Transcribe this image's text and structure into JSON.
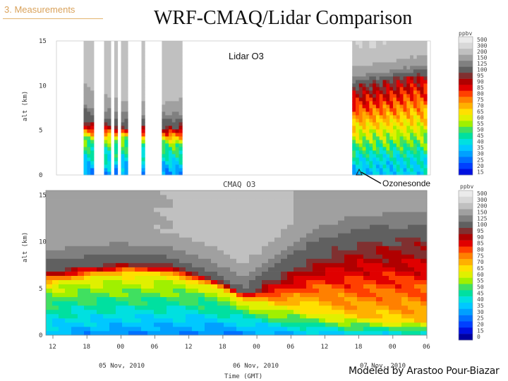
{
  "slide": {
    "section": "3. Measurements",
    "title": "WRF-CMAQ/Lidar Comparison",
    "credit": "Modeled by Arastoo Pour-Biazar",
    "ozonesonde_label": "Ozonesonde"
  },
  "colors": {
    "scale": [
      "#0000a0",
      "#0010e0",
      "#0040ff",
      "#0070ff",
      "#00a0ff",
      "#00c8ff",
      "#00e0e0",
      "#00e0a0",
      "#40e060",
      "#a0f000",
      "#e0f000",
      "#ffe000",
      "#ffb000",
      "#ff8000",
      "#ff4000",
      "#e00000",
      "#b00000",
      "#803030",
      "#606060",
      "#808080",
      "#a0a0a0",
      "#c0c0c0",
      "#d8d8d8",
      "#ebebeb"
    ],
    "accent": "#d9a25b"
  },
  "chart_data": [
    {
      "type": "heatmap",
      "title": "Lidar O3",
      "ylabel": "alt (km)",
      "ylim": [
        0,
        15
      ],
      "yticks": [
        "0",
        "5",
        "10",
        "15"
      ],
      "colorbar_unit": "ppbv",
      "colorbar_ticks": [
        "500",
        "300",
        "200",
        "150",
        "125",
        "100",
        "95",
        "90",
        "85",
        "80",
        "75",
        "70",
        "65",
        "60",
        "55",
        "50",
        "45",
        "40",
        "35",
        "30",
        "25",
        "20",
        "15"
      ],
      "profile_columns": [
        {
          "t": 0.0,
          "sfc": 35,
          "bl_top": 4.5,
          "pl": 55,
          "peak_alt": 8.0,
          "peak": 115,
          "upper": 220,
          "gap": false
        },
        {
          "t": 0.07,
          "sfc": 30,
          "bl_top": 4.0,
          "pl": 55,
          "peak_alt": 7.0,
          "peak": 120,
          "upper": 230,
          "gap": false
        },
        {
          "t": 0.11,
          "sfc": 32,
          "bl_top": 4.0,
          "pl": 58,
          "peak_alt": 6.5,
          "peak": 125,
          "upper": 240,
          "gap": false
        },
        {
          "t": 0.14,
          "sfc": 0,
          "bl_top": 0,
          "pl": 0,
          "peak_alt": 0,
          "peak": 0,
          "upper": 0,
          "gap": true
        },
        {
          "t": 0.19,
          "sfc": 30,
          "bl_top": 4.0,
          "pl": 55,
          "peak_alt": 6.0,
          "peak": 120,
          "upper": 260,
          "gap": false
        },
        {
          "t": 0.31,
          "sfc": 30,
          "bl_top": 3.5,
          "pl": 55,
          "peak_alt": 5.8,
          "peak": 110,
          "upper": 260,
          "gap": false
        },
        {
          "t": 0.47,
          "sfc": 0,
          "bl_top": 0,
          "pl": 0,
          "peak_alt": 0,
          "peak": 0,
          "upper": 0,
          "gap": true
        },
        {
          "t": 0.78,
          "sfc": 35,
          "bl_top": 2.0,
          "pl": 45,
          "peak_alt": 10.0,
          "peak": 100,
          "upper": 300,
          "gap": false
        },
        {
          "t": 0.86,
          "sfc": 38,
          "bl_top": 1.5,
          "pl": 40,
          "peak_alt": 10.5,
          "peak": 100,
          "upper": 300,
          "gap": false
        },
        {
          "t": 0.95,
          "sfc": 40,
          "bl_top": 1.5,
          "pl": 42,
          "peak_alt": 11.0,
          "peak": 95,
          "upper": 280,
          "gap": false
        }
      ]
    },
    {
      "type": "heatmap",
      "title": "CMAQ O3",
      "xlabel": "Time (GMT)",
      "ylabel": "alt (km)",
      "ylim": [
        0,
        15.5
      ],
      "yticks": [
        "0",
        "5",
        "10",
        "15"
      ],
      "xticks": [
        "12",
        "18",
        "00",
        "06",
        "12",
        "18",
        "00",
        "06",
        "12",
        "18",
        "00",
        "06"
      ],
      "dates": [
        "05 Nov, 2010",
        "06 Nov, 2010",
        "07 Nov, 2010"
      ],
      "colorbar_unit": "ppbv",
      "colorbar_ticks": [
        "500",
        "300",
        "200",
        "150",
        "125",
        "100",
        "95",
        "90",
        "85",
        "80",
        "75",
        "70",
        "65",
        "60",
        "55",
        "50",
        "45",
        "40",
        "35",
        "30",
        "25",
        "20",
        "15",
        "0"
      ],
      "profile_columns": [
        {
          "t": 0.0,
          "sfc": 35,
          "bl_top": 5.0,
          "pl": 60,
          "peak_alt": 6.0,
          "peak": 80,
          "upper": 170
        },
        {
          "t": 0.1,
          "sfc": 32,
          "bl_top": 6.0,
          "pl": 62,
          "peak_alt": 7.0,
          "peak": 90,
          "upper": 180
        },
        {
          "t": 0.2,
          "sfc": 30,
          "bl_top": 6.5,
          "pl": 65,
          "peak_alt": 7.5,
          "peak": 95,
          "upper": 190
        },
        {
          "t": 0.32,
          "sfc": 30,
          "bl_top": 6.5,
          "pl": 65,
          "peak_alt": 7.2,
          "peak": 90,
          "upper": 200
        },
        {
          "t": 0.45,
          "sfc": 28,
          "bl_top": 5.0,
          "pl": 62,
          "peak_alt": 6.0,
          "peak": 105,
          "upper": 220
        },
        {
          "t": 0.52,
          "sfc": 30,
          "bl_top": 3.5,
          "pl": 60,
          "peak_alt": 5.0,
          "peak": 120,
          "upper": 240
        },
        {
          "t": 0.6,
          "sfc": 32,
          "bl_top": 3.0,
          "pl": 65,
          "peak_alt": 7.0,
          "peak": 110,
          "upper": 220
        },
        {
          "t": 0.7,
          "sfc": 35,
          "bl_top": 2.5,
          "pl": 65,
          "peak_alt": 9.0,
          "peak": 105,
          "upper": 180
        },
        {
          "t": 0.82,
          "sfc": 38,
          "bl_top": 2.0,
          "pl": 70,
          "peak_alt": 10.0,
          "peak": 100,
          "upper": 170
        },
        {
          "t": 1.0,
          "sfc": 40,
          "bl_top": 1.5,
          "pl": 70,
          "peak_alt": 10.5,
          "peak": 100,
          "upper": 170
        }
      ]
    }
  ]
}
